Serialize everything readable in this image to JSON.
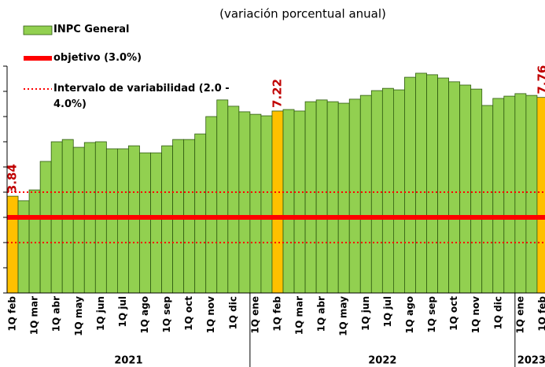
{
  "chart_data": {
    "type": "bar",
    "subtitle": "(variación porcentual anual)",
    "groups": [
      {
        "label": "2021",
        "categories": [
          "1Q feb",
          null,
          "1Q mar",
          null,
          "1Q abr",
          null,
          "1Q may",
          null,
          "1Q jun",
          null,
          "1Q jul",
          null,
          "1Q ago",
          null,
          "1Q sep",
          null,
          "1Q oct",
          null,
          "1Q nov",
          null,
          "1Q dic",
          null
        ]
      },
      {
        "label": "2022",
        "categories": [
          "1Q ene",
          null,
          "1Q feb",
          null,
          "1Q mar",
          null,
          "1Q abr",
          null,
          "1Q may",
          null,
          "1Q jun",
          null,
          "1Q jul",
          null,
          "1Q ago",
          null,
          "1Q sep",
          null,
          "1Q oct",
          null,
          "1Q nov",
          null,
          "1Q dic",
          null
        ]
      },
      {
        "label": "2023",
        "categories": [
          "1Q ene",
          null,
          "1Q feb"
        ]
      }
    ],
    "series": [
      {
        "name": "INPC General",
        "color": "#92d050",
        "highlight_color": "#ffc000",
        "highlighted": [
          0,
          24,
          48
        ],
        "values": [
          3.84,
          3.66,
          4.09,
          5.22,
          6.0,
          6.09,
          5.78,
          5.97,
          6.0,
          5.72,
          5.72,
          5.84,
          5.56,
          5.56,
          5.84,
          6.09,
          6.09,
          6.31,
          7.0,
          7.66,
          7.41,
          7.19,
          7.09,
          7.03,
          7.22,
          7.28,
          7.22,
          7.59,
          7.66,
          7.59,
          7.53,
          7.69,
          7.84,
          8.03,
          8.12,
          8.06,
          8.56,
          8.72,
          8.66,
          8.53,
          8.38,
          8.25,
          8.09,
          7.44,
          7.72,
          7.81,
          7.91,
          7.84,
          7.76
        ],
        "value_labels": [
          "3.84",
          null,
          null,
          null,
          null,
          null,
          null,
          null,
          null,
          null,
          null,
          null,
          null,
          null,
          null,
          null,
          null,
          null,
          null,
          null,
          null,
          null,
          null,
          null,
          "7.22",
          null,
          null,
          null,
          null,
          null,
          null,
          null,
          null,
          null,
          null,
          null,
          null,
          null,
          null,
          null,
          null,
          null,
          null,
          null,
          null,
          null,
          null,
          null,
          "7.76"
        ]
      }
    ],
    "target": {
      "name": "objetivo (3.0%)",
      "value": 3.0,
      "color": "#ff0000"
    },
    "interval": {
      "name": "Intervalo de variabilidad (2.0 - 4.0%)",
      "values": [
        2.0,
        4.0
      ],
      "color": "#ff0000"
    },
    "ylim": [
      0,
      9
    ],
    "yticks": [
      0,
      1,
      2,
      3,
      4,
      5,
      6,
      7,
      8,
      9
    ]
  }
}
